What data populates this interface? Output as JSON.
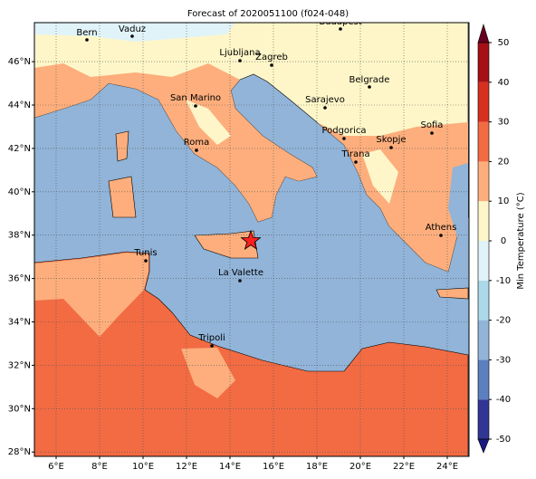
{
  "title": "Forecast of 2020051100 (f024-048)",
  "xaxis": {
    "lim": [
      5,
      25
    ],
    "ticks": [
      {
        "value": 6,
        "label": "6°E"
      },
      {
        "value": 8,
        "label": "8°E"
      },
      {
        "value": 10,
        "label": "10°E"
      },
      {
        "value": 12,
        "label": "12°E"
      },
      {
        "value": 14,
        "label": "14°E"
      },
      {
        "value": 16,
        "label": "16°E"
      },
      {
        "value": 18,
        "label": "18°E"
      },
      {
        "value": 20,
        "label": "20°E"
      },
      {
        "value": 22,
        "label": "22°E"
      },
      {
        "value": 24,
        "label": "24°E"
      }
    ]
  },
  "yaxis": {
    "lim": [
      27.8,
      47.8
    ],
    "ticks": [
      {
        "value": 28,
        "label": "28°N"
      },
      {
        "value": 30,
        "label": "30°N"
      },
      {
        "value": 32,
        "label": "32°N"
      },
      {
        "value": 34,
        "label": "34°N"
      },
      {
        "value": 36,
        "label": "36°N"
      },
      {
        "value": 38,
        "label": "38°N"
      },
      {
        "value": 40,
        "label": "40°N"
      },
      {
        "value": 42,
        "label": "42°N"
      },
      {
        "value": 44,
        "label": "44°N"
      },
      {
        "value": 46,
        "label": "46°N"
      }
    ]
  },
  "cities": [
    "Bern",
    "Vaduz",
    "Budapest",
    "Ljubljana",
    "Zagreb",
    "Belgrade",
    "San Marino",
    "Sarajevo",
    "Sofia",
    "Podgorica",
    "Skopje",
    "Roma",
    "Tirana",
    "Athens",
    "Tunis",
    "La Valette",
    "Tripoli"
  ],
  "colorbar": {
    "label": "Min Temperature (°C)",
    "lim": [
      -50,
      50
    ],
    "ticks": [
      -50,
      -40,
      -30,
      -20,
      -10,
      0,
      10,
      20,
      30,
      40,
      50
    ],
    "colors": [
      "#313695",
      "#5b7fbf",
      "#91b4d8",
      "#abd9e9",
      "#e0f3f8",
      "#fef6c8",
      "#fdae7c",
      "#f26b43",
      "#d7301f",
      "#a50f15"
    ],
    "under": "#1a1a80",
    "over": "#67001f"
  }
}
